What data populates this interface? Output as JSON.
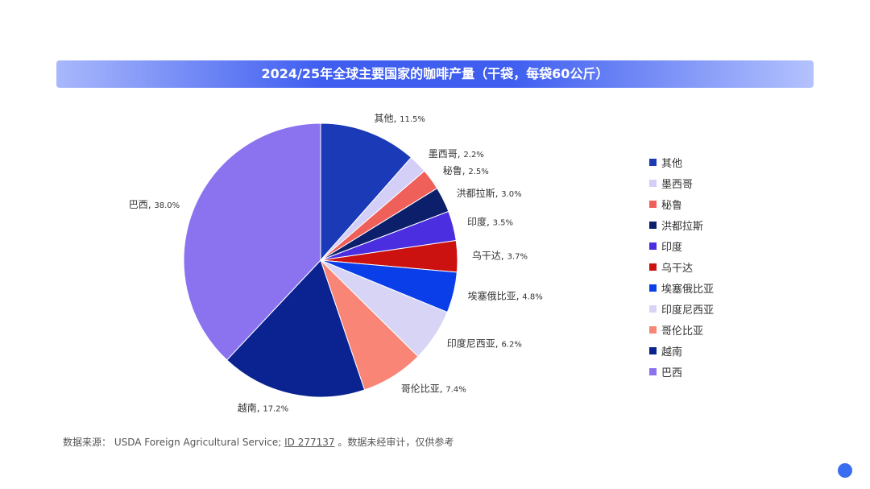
{
  "chart_data": {
    "type": "pie",
    "title": "2024/25年全球主要国家的咖啡产量（干袋，每袋60公斤）",
    "start": "top",
    "direction": "clockwise",
    "slices": [
      {
        "label": "其他",
        "value": 11.5,
        "color": "#1a3ab8"
      },
      {
        "label": "墨西哥",
        "value": 2.2,
        "color": "#d3cff6"
      },
      {
        "label": "秘鲁",
        "value": 2.5,
        "color": "#f0605a"
      },
      {
        "label": "洪都拉斯",
        "value": 3.0,
        "color": "#0c1f6b"
      },
      {
        "label": "印度",
        "value": 3.5,
        "color": "#4a2ee0"
      },
      {
        "label": "乌干达",
        "value": 3.7,
        "color": "#cc1111"
      },
      {
        "label": "埃塞俄比亚",
        "value": 4.8,
        "color": "#0a3ee8"
      },
      {
        "label": "印度尼西亚",
        "value": 6.2,
        "color": "#d8d4f6"
      },
      {
        "label": "哥伦比亚",
        "value": 7.4,
        "color": "#f98577"
      },
      {
        "label": "越南",
        "value": 17.2,
        "color": "#0a2390"
      },
      {
        "label": "巴西",
        "value": 38.0,
        "color": "#8b73ef"
      }
    ],
    "legend": "right"
  },
  "source": {
    "prefix": "数据来源：  USDA Foreign Agricultural Service; ",
    "link": "ID 277137",
    "suffix": " 。数据未经审计，仅供参考"
  }
}
